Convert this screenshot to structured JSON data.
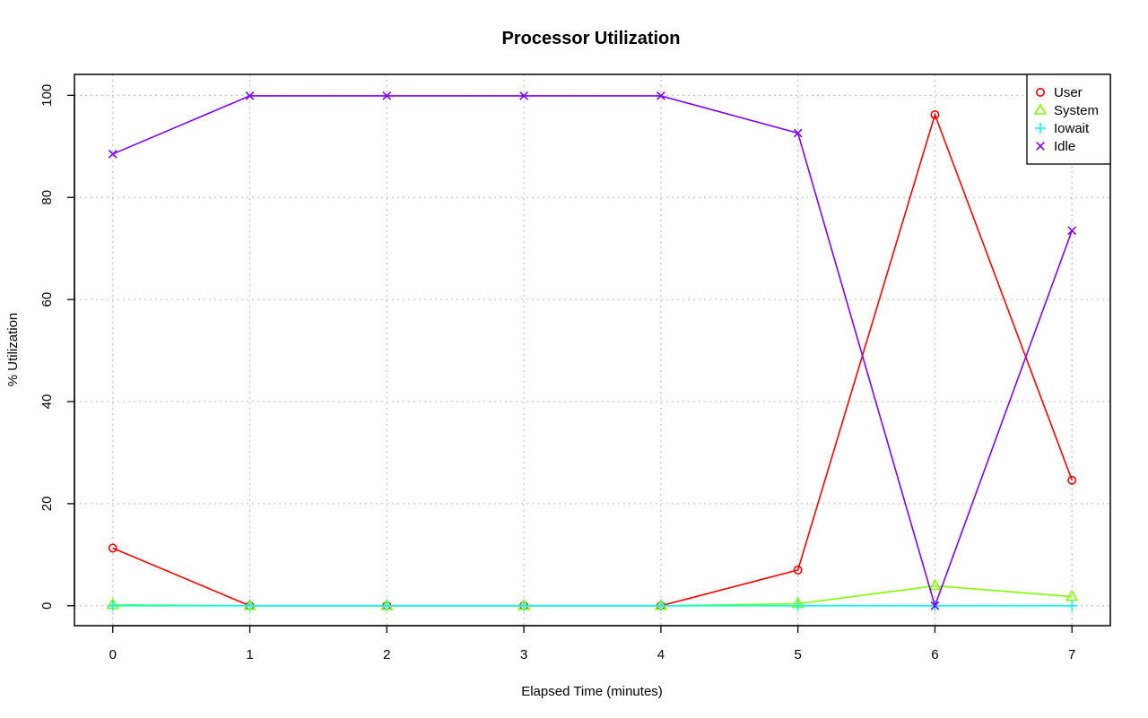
{
  "chart_data": {
    "type": "line",
    "title": "Processor Utilization",
    "xlabel": "Elapsed Time (minutes)",
    "ylabel": "% Utilization",
    "x": [
      0,
      1,
      2,
      3,
      4,
      5,
      6,
      7
    ],
    "xlim": [
      -0.28,
      7.28
    ],
    "ylim": [
      -3.9,
      104.1
    ],
    "x_ticks": [
      0,
      1,
      2,
      3,
      4,
      5,
      6,
      7
    ],
    "y_ticks": [
      0,
      20,
      40,
      60,
      80,
      100
    ],
    "grid": true,
    "legend_position": "top-right",
    "series": [
      {
        "name": "User",
        "color": "#ff0000",
        "marker": "circle",
        "values": [
          11.3,
          0,
          0,
          0,
          0,
          7.0,
          96.2,
          24.6
        ]
      },
      {
        "name": "System",
        "color": "#80ff00",
        "marker": "triangle",
        "values": [
          0.2,
          0,
          0,
          0,
          0,
          0.4,
          3.9,
          1.8
        ]
      },
      {
        "name": "Iowait",
        "color": "#00ffff",
        "marker": "plus",
        "values": [
          0,
          0,
          0,
          0,
          0,
          0,
          0,
          0
        ]
      },
      {
        "name": "Idle",
        "color": "#8000ff",
        "marker": "cross",
        "values": [
          88.5,
          99.9,
          99.9,
          99.9,
          99.9,
          92.6,
          0,
          73.5
        ]
      }
    ]
  }
}
